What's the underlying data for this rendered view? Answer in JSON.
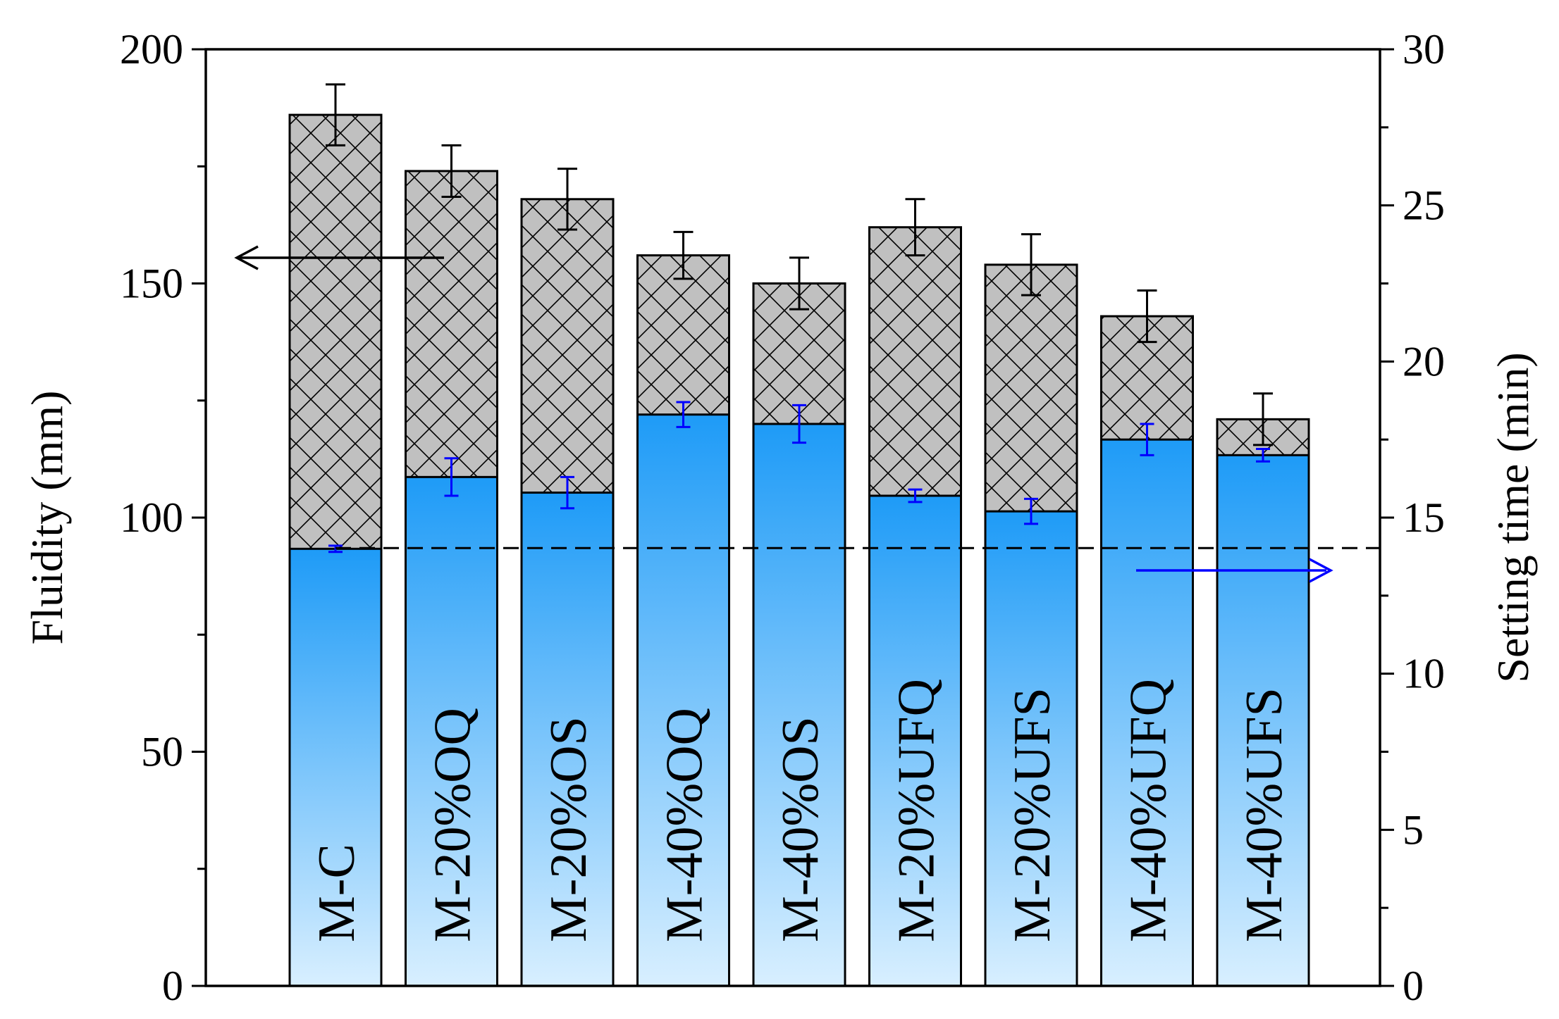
{
  "chart_data": {
    "type": "bar",
    "title": "",
    "categories": [
      "M-C",
      "M-20%OQ",
      "M-20%OS",
      "M-40%OQ",
      "M-40%OS",
      "M-20%UFQ",
      "M-20%UFS",
      "M-40%UFQ",
      "M-40%UFS"
    ],
    "series": [
      {
        "name": "Fluidity",
        "axis": "left",
        "values": [
          186,
          174,
          168,
          156,
          150,
          162,
          154,
          143,
          121
        ],
        "errors": [
          6.5,
          5.5,
          6.5,
          5,
          5.5,
          6,
          6.5,
          5.5,
          5.5
        ],
        "style": "grey cross-hatched bar",
        "color": "#c0c0c0"
      },
      {
        "name": "Setting time",
        "axis": "right",
        "values": [
          14,
          16.3,
          15.8,
          18.3,
          18,
          15.7,
          15.2,
          17.5,
          17
        ],
        "errors": [
          0.1,
          0.6,
          0.5,
          0.4,
          0.6,
          0.2,
          0.4,
          0.5,
          0.2
        ],
        "style": "blue gradient bar",
        "color": "#1e9bf7"
      }
    ],
    "left_axis": {
      "label": "Fluidity (mm)",
      "ylim": [
        0,
        200
      ],
      "ticks": [
        "0",
        "50",
        "100",
        "150",
        "200"
      ]
    },
    "right_axis": {
      "label": "Setting time (min)",
      "ylim": [
        0,
        30
      ],
      "ticks": [
        "0",
        "5",
        "10",
        "15",
        "20",
        "25",
        "30"
      ]
    },
    "reference_line": {
      "value_left": 93.5,
      "style": "dashed"
    },
    "annotations": [
      {
        "type": "arrow",
        "direction": "left",
        "points_to": "left axis",
        "color": "#000000"
      },
      {
        "type": "arrow",
        "direction": "right",
        "points_to": "right axis",
        "color": "#0000ff"
      }
    ],
    "grid": false,
    "colors": {
      "hatch_fill": "#c0c0c0",
      "gradient_top": "#1e9bf7",
      "gradient_bottom": "#d8efff",
      "setting_error_bar": "#0000ff",
      "fluidity_error_bar": "#000000"
    }
  }
}
